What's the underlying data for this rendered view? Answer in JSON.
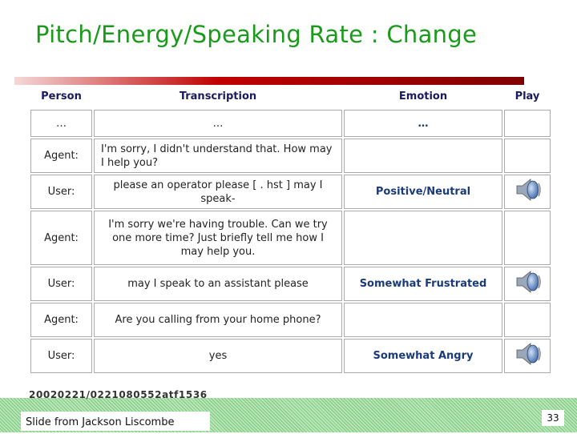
{
  "title": "Pitch/Energy/Speaking Rate : Change",
  "table": {
    "header": [
      "Person",
      "Transcription",
      "Emotion",
      "Play"
    ],
    "rows": [
      {
        "person": "…",
        "transcription": "…",
        "emotion": "…"
      },
      {
        "person": "Agent:",
        "transcription": "I'm sorry, I didn't understand that. How may I help you?",
        "align": "left"
      },
      {
        "person": "User:",
        "transcription": "please an operator please [ . hst ] may I speak-",
        "emotion": "Positive/Neutral",
        "play": true
      },
      {
        "person": "Agent:",
        "transcription": "I'm sorry we're having trouble. Can we try one more time? Just briefly tell me how I may help you."
      },
      {
        "person": "User:",
        "transcription": "may I speak to an assistant please",
        "emotion": "Somewhat Frustrated",
        "play": true
      },
      {
        "person": "Agent:",
        "transcription": "Are you calling from your home phone?"
      },
      {
        "person": "User:",
        "transcription": "yes",
        "emotion": "Somewhat Angry",
        "play": true
      }
    ]
  },
  "file_id": "20020221/0221080552atf1536",
  "credit": "Slide from Jackson Liscombe",
  "page_number": "33"
}
